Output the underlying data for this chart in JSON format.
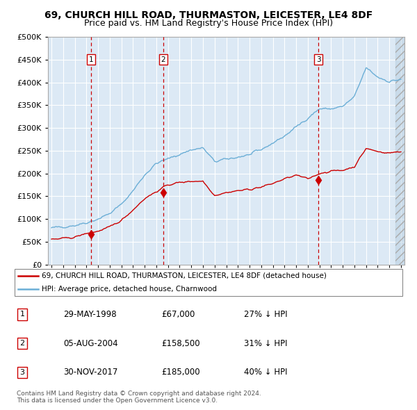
{
  "title1": "69, CHURCH HILL ROAD, THURMASTON, LEICESTER, LE4 8DF",
  "title2": "Price paid vs. HM Land Registry's House Price Index (HPI)",
  "title1_fontsize": 10,
  "title2_fontsize": 9,
  "bg_color": "#dce9f5",
  "grid_color": "#ffffff",
  "hpi_line_color": "#6baed6",
  "price_line_color": "#cc0000",
  "vline_color": "#cc0000",
  "marker_color": "#cc0000",
  "ylim": [
    0,
    500000
  ],
  "yticks": [
    0,
    50000,
    100000,
    150000,
    200000,
    250000,
    300000,
    350000,
    400000,
    450000,
    500000
  ],
  "sale1_year": 1998.41,
  "sale1_price": 67000,
  "sale2_year": 2004.59,
  "sale2_price": 158500,
  "sale3_year": 2017.92,
  "sale3_price": 185000,
  "legend_line1": "69, CHURCH HILL ROAD, THURMASTON, LEICESTER, LE4 8DF (detached house)",
  "legend_line2": "HPI: Average price, detached house, Charnwood",
  "table_rows": [
    [
      "1",
      "29-MAY-1998",
      "£67,000",
      "27% ↓ HPI"
    ],
    [
      "2",
      "05-AUG-2004",
      "£158,500",
      "31% ↓ HPI"
    ],
    [
      "3",
      "30-NOV-2017",
      "£185,000",
      "40% ↓ HPI"
    ]
  ],
  "footnote1": "Contains HM Land Registry data © Crown copyright and database right 2024.",
  "footnote2": "This data is licensed under the Open Government Licence v3.0.",
  "hpi_anchors_x": [
    1995,
    1996,
    1997,
    1998,
    1999,
    2000,
    2001,
    2002,
    2003,
    2004,
    2005,
    2006,
    2007,
    2008,
    2009,
    2010,
    2011,
    2012,
    2013,
    2014,
    2015,
    2016,
    2017,
    2018,
    2019,
    2020,
    2021,
    2022,
    2023,
    2024,
    2025
  ],
  "hpi_anchors_y": [
    80000,
    83000,
    86000,
    92000,
    100000,
    112000,
    132000,
    162000,
    197000,
    222000,
    232000,
    242000,
    252000,
    256000,
    226000,
    231000,
    236000,
    241000,
    252000,
    267000,
    282000,
    302000,
    322000,
    342000,
    342000,
    347000,
    368000,
    432000,
    412000,
    402000,
    407000
  ],
  "price_anchors_x": [
    1995,
    1996,
    1997,
    1998,
    1999,
    2000,
    2001,
    2002,
    2003,
    2004,
    2005,
    2006,
    2007,
    2008,
    2009,
    2010,
    2011,
    2012,
    2013,
    2014,
    2015,
    2016,
    2017,
    2018,
    2019,
    2020,
    2021,
    2022,
    2023,
    2024,
    2025
  ],
  "price_anchors_y": [
    55000,
    57000,
    60000,
    68000,
    73000,
    82000,
    97000,
    120000,
    145000,
    160000,
    175000,
    180000,
    183000,
    183000,
    152000,
    158000,
    162000,
    165000,
    170000,
    178000,
    188000,
    196000,
    188000,
    200000,
    205000,
    207000,
    215000,
    255000,
    248000,
    245000,
    248000
  ]
}
